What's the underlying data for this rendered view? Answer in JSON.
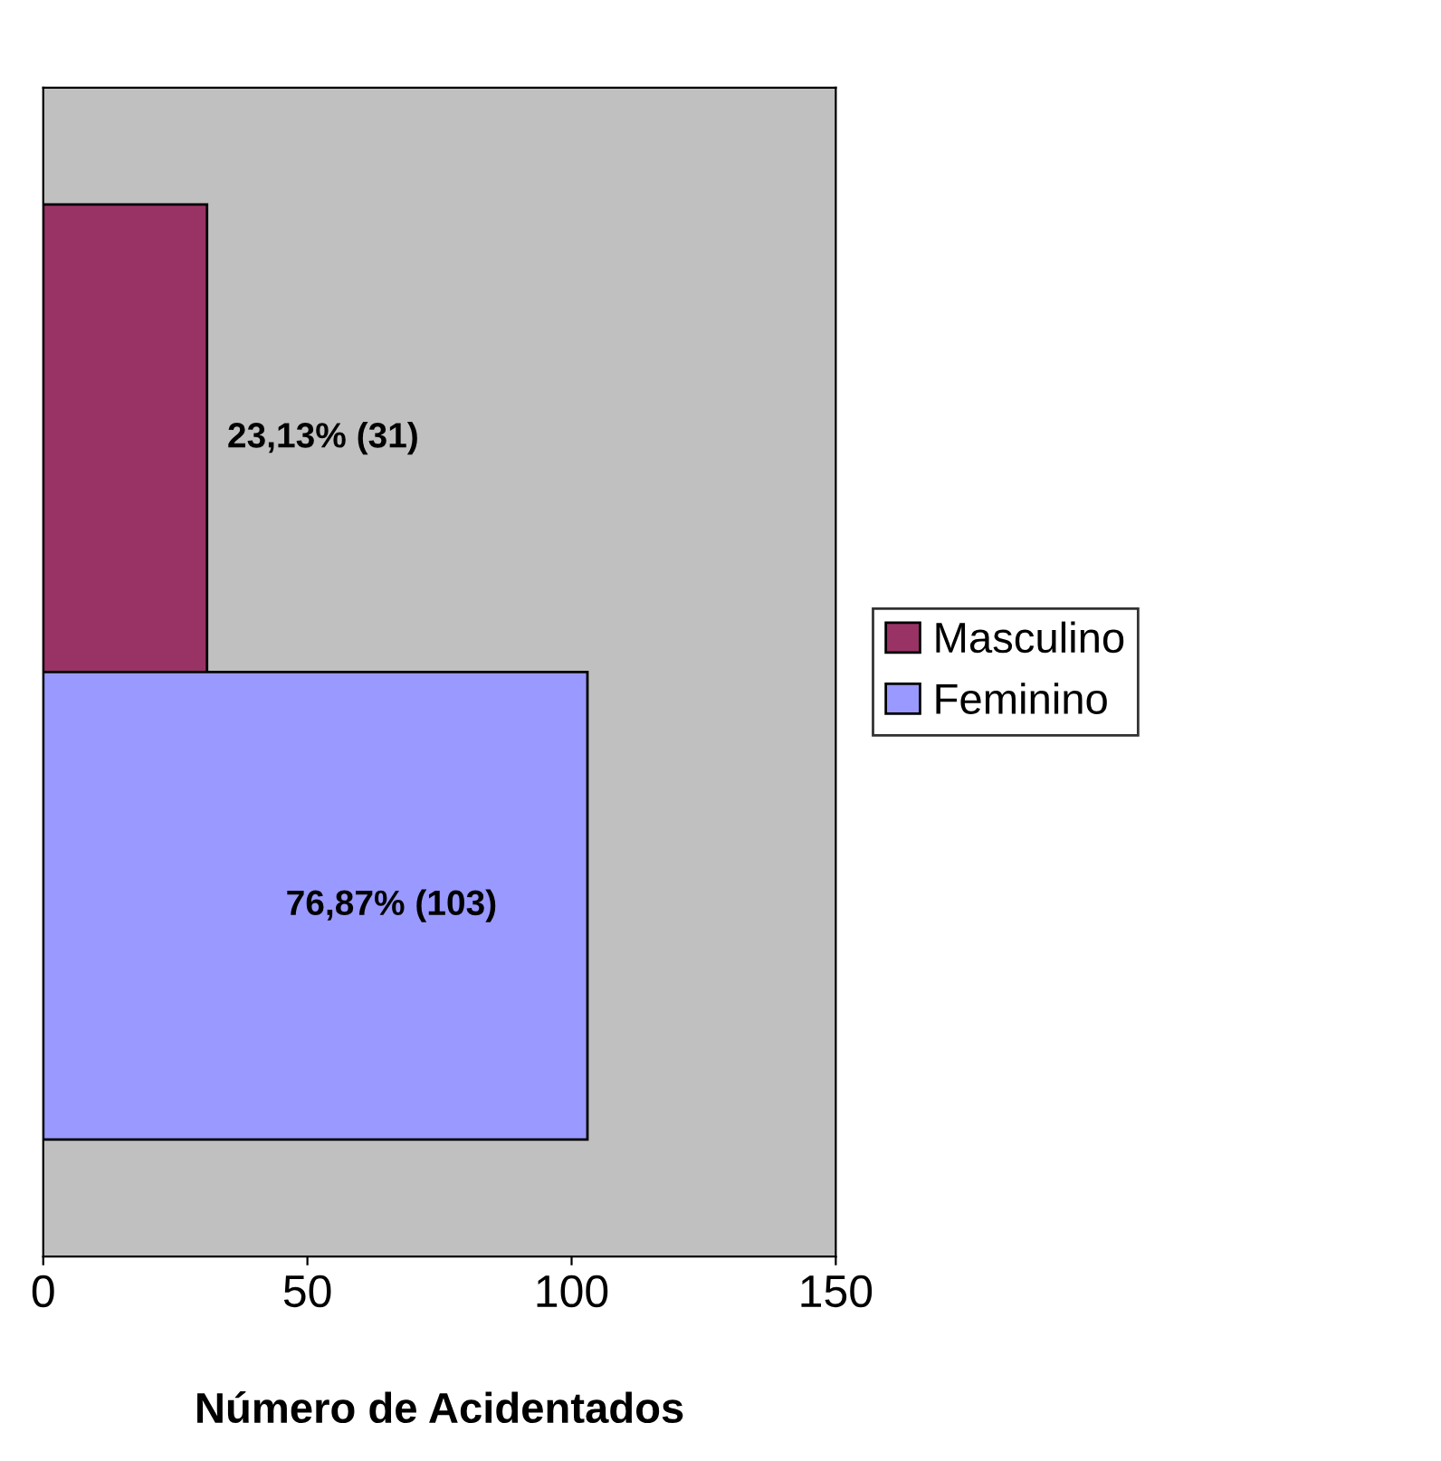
{
  "chart_data": {
    "type": "bar",
    "orientation": "horizontal",
    "xlabel": "Número de Acidentados",
    "categories": [
      null
    ],
    "series": [
      {
        "name": "Masculino",
        "color": "#993366",
        "values": [
          31
        ],
        "value_labels": [
          "23,13% (31)"
        ]
      },
      {
        "name": "Feminino",
        "color": "#9999ff",
        "values": [
          103
        ],
        "value_labels": [
          "76,87% (103)"
        ]
      }
    ],
    "xlim": [
      0,
      150
    ],
    "xticks": [
      0,
      50,
      100,
      150
    ],
    "grid": false,
    "legend": "right"
  }
}
